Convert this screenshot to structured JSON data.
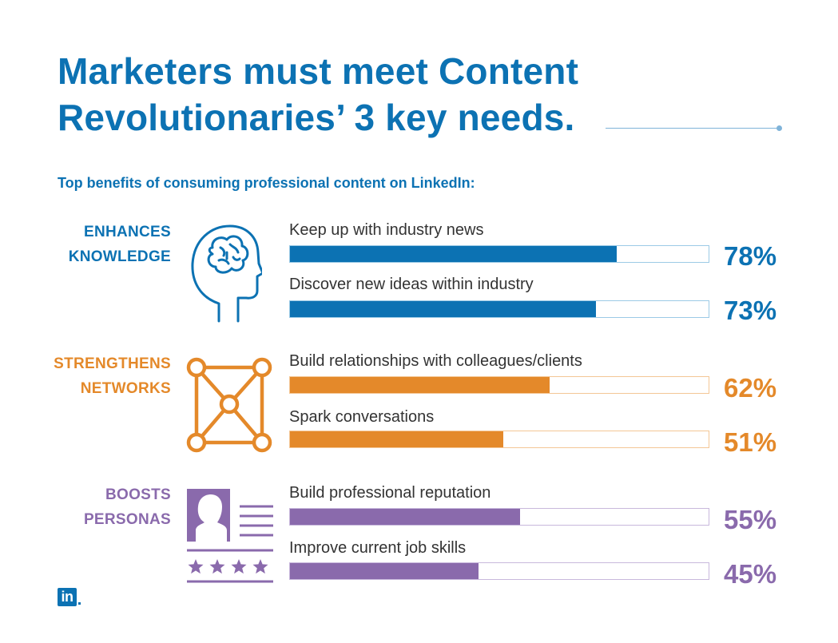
{
  "title": "Marketers must meet Content Revolutionaries’ 3 key needs.",
  "subtitle": "Top benefits of consuming professional content on LinkedIn:",
  "logo_text": "in",
  "colors": {
    "blue": "#0C72B3",
    "orange": "#E4892A",
    "purple": "#8A6AAC"
  },
  "chart_data": {
    "type": "bar",
    "orientation": "horizontal",
    "value_range": [
      0,
      100
    ],
    "unit": "%",
    "groups": [
      {
        "label_lines": [
          "ENHANCES",
          "KNOWLEDGE"
        ],
        "icon": "brain-head-icon",
        "color": "#0C72B3",
        "track_color": "#9CCAE6",
        "bars": [
          {
            "label": "Keep up with industry news",
            "value": 78,
            "display": "78%"
          },
          {
            "label": "Discover new ideas within industry",
            "value": 73,
            "display": "73%"
          }
        ]
      },
      {
        "label_lines": [
          "STRENGTHENS",
          "NETWORKS"
        ],
        "icon": "network-nodes-icon",
        "color": "#E4892A",
        "track_color": "#F4C796",
        "bars": [
          {
            "label": "Build relationships with colleagues/clients",
            "value": 62,
            "display": "62%"
          },
          {
            "label": "Spark conversations",
            "value": 51,
            "display": "51%"
          }
        ]
      },
      {
        "label_lines": [
          "BOOSTS",
          "PERSONAS"
        ],
        "icon": "profile-card-icon",
        "color": "#8A6AAC",
        "track_color": "#C8B8DC",
        "bars": [
          {
            "label": "Build professional reputation",
            "value": 55,
            "display": "55%"
          },
          {
            "label": "Improve current job skills",
            "value": 45,
            "display": "45%"
          }
        ]
      }
    ]
  }
}
